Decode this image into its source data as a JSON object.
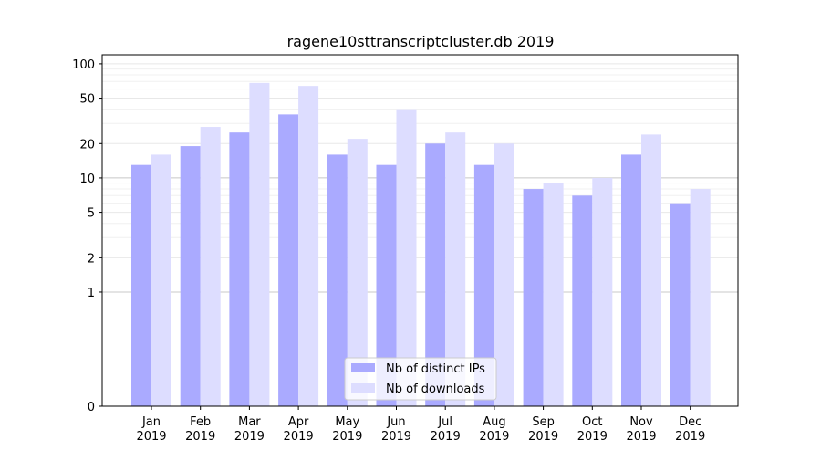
{
  "chart_data": {
    "type": "bar",
    "title": "ragene10sttranscriptcluster.db 2019",
    "xlabel": "",
    "ylabel": "",
    "y_scale": "symlog",
    "ylim": [
      0,
      120
    ],
    "categories": [
      "Jan\n2019",
      "Feb\n2019",
      "Mar\n2019",
      "Apr\n2019",
      "May\n2019",
      "Jun\n2019",
      "Jul\n2019",
      "Aug\n2019",
      "Sep\n2019",
      "Oct\n2019",
      "Nov\n2019",
      "Dec\n2019"
    ],
    "series": [
      {
        "name": "Nb of distinct IPs",
        "color": "#aaaaff",
        "values": [
          13,
          19,
          25,
          36,
          16,
          13,
          20,
          13,
          8,
          7,
          16,
          6
        ]
      },
      {
        "name": "Nb of downloads",
        "color": "#ddddff",
        "values": [
          16,
          28,
          68,
          64,
          22,
          40,
          25,
          20,
          9,
          10,
          24,
          8
        ]
      }
    ],
    "y_ticks": [
      0,
      1,
      2,
      5,
      10,
      20,
      50,
      100
    ],
    "y_tick_labels": [
      "0",
      "1",
      "2",
      "5",
      "10",
      "20",
      "50",
      "100"
    ],
    "grid": true,
    "legend_position": "bottom-center"
  }
}
